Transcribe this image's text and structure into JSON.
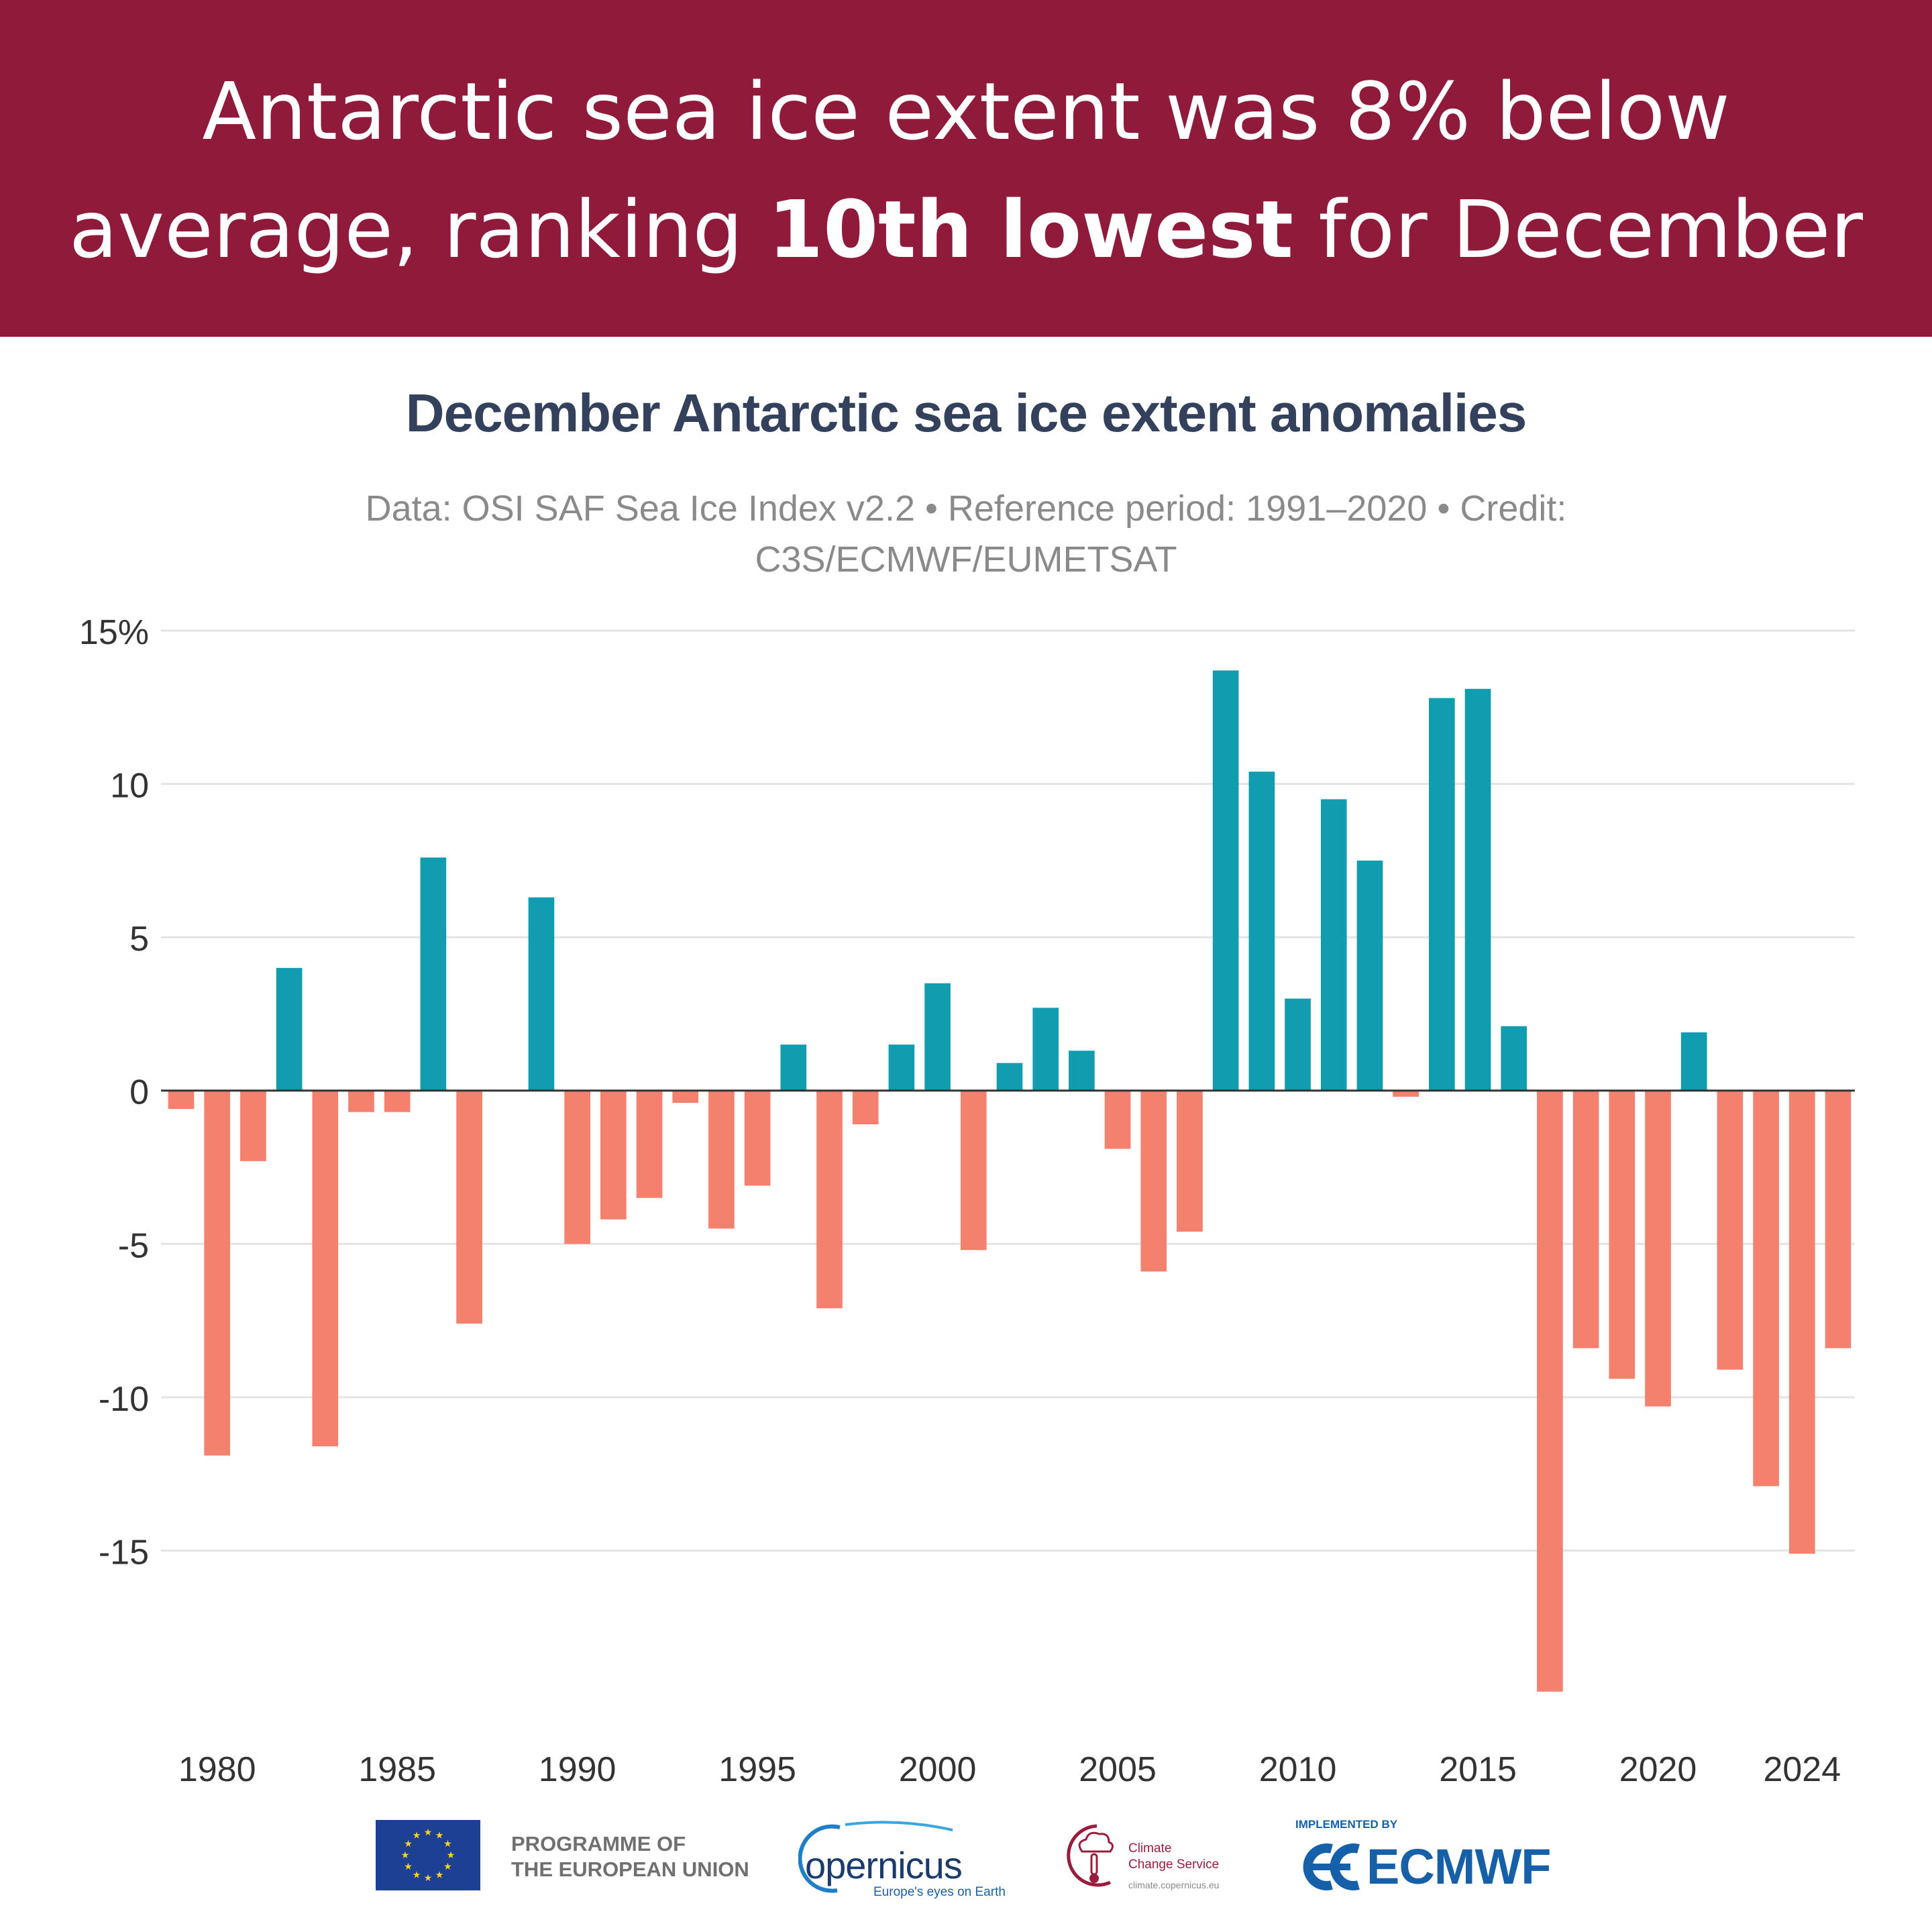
{
  "banner": {
    "line1": "Antarctic sea ice extent was 8% below",
    "line2_pre": "average, ranking ",
    "line2_bold": "10th lowest",
    "line2_post": " for December",
    "background": "#8f1a3a"
  },
  "chart_data": {
    "type": "bar",
    "title": "December Antarctic sea ice extent anomalies",
    "subtitle": "Data: OSI SAF Sea Ice Index v2.2 • Reference period: 1991–2020 • Credit: C3S/ECMWF/EUMETSAT",
    "xlabel": "",
    "ylabel": "",
    "ylim": [
      -20,
      15
    ],
    "y_ticks": [
      15,
      10,
      5,
      0,
      -5,
      -10,
      -15
    ],
    "y_tick_labels": [
      "15%",
      "10",
      "5",
      "0",
      "-5",
      "-10",
      "-15"
    ],
    "x_ticks": [
      1980,
      1985,
      1990,
      1995,
      2000,
      2005,
      2010,
      2015,
      2020,
      2024
    ],
    "grid": true,
    "colors": {
      "positive": "#129caf",
      "negative": "#f4806e",
      "zero_line": "#333333",
      "grid": "#e3e3e3"
    },
    "x": [
      1979,
      1980,
      1981,
      1982,
      1983,
      1984,
      1985,
      1986,
      1987,
      1988,
      1989,
      1990,
      1991,
      1992,
      1993,
      1994,
      1995,
      1996,
      1997,
      1998,
      1999,
      2000,
      2001,
      2002,
      2003,
      2004,
      2005,
      2006,
      2007,
      2008,
      2009,
      2010,
      2011,
      2012,
      2013,
      2014,
      2015,
      2016,
      2017,
      2018,
      2019,
      2020,
      2021,
      2022,
      2023,
      2024,
      2025
    ],
    "values": [
      -0.6,
      -11.9,
      -2.3,
      4.0,
      -11.6,
      -0.7,
      -0.7,
      7.6,
      -7.6,
      0.0,
      6.3,
      -5.0,
      -4.2,
      -3.5,
      -0.4,
      -4.5,
      -3.1,
      1.5,
      -7.1,
      -1.1,
      1.5,
      3.5,
      -5.2,
      0.9,
      2.7,
      1.3,
      -1.9,
      -5.9,
      -4.6,
      13.7,
      10.4,
      3.0,
      9.5,
      7.5,
      -0.2,
      12.8,
      13.1,
      2.1,
      -19.6,
      -8.4,
      -9.4,
      -10.3,
      1.9,
      -9.1,
      -12.9,
      -15.1,
      -8.4
    ]
  },
  "logos": {
    "eu_line1": "PROGRAMME OF",
    "eu_line2": "THE EUROPEAN UNION",
    "copernicus_word": "opernicus",
    "copernicus_tag": "Europe's eyes on Earth",
    "c3s_line1": "Climate",
    "c3s_line2": "Change Service",
    "c3s_url": "climate.copernicus.eu",
    "ecmwf_implemented": "IMPLEMENTED BY",
    "ecmwf_word": "ECMWF"
  }
}
